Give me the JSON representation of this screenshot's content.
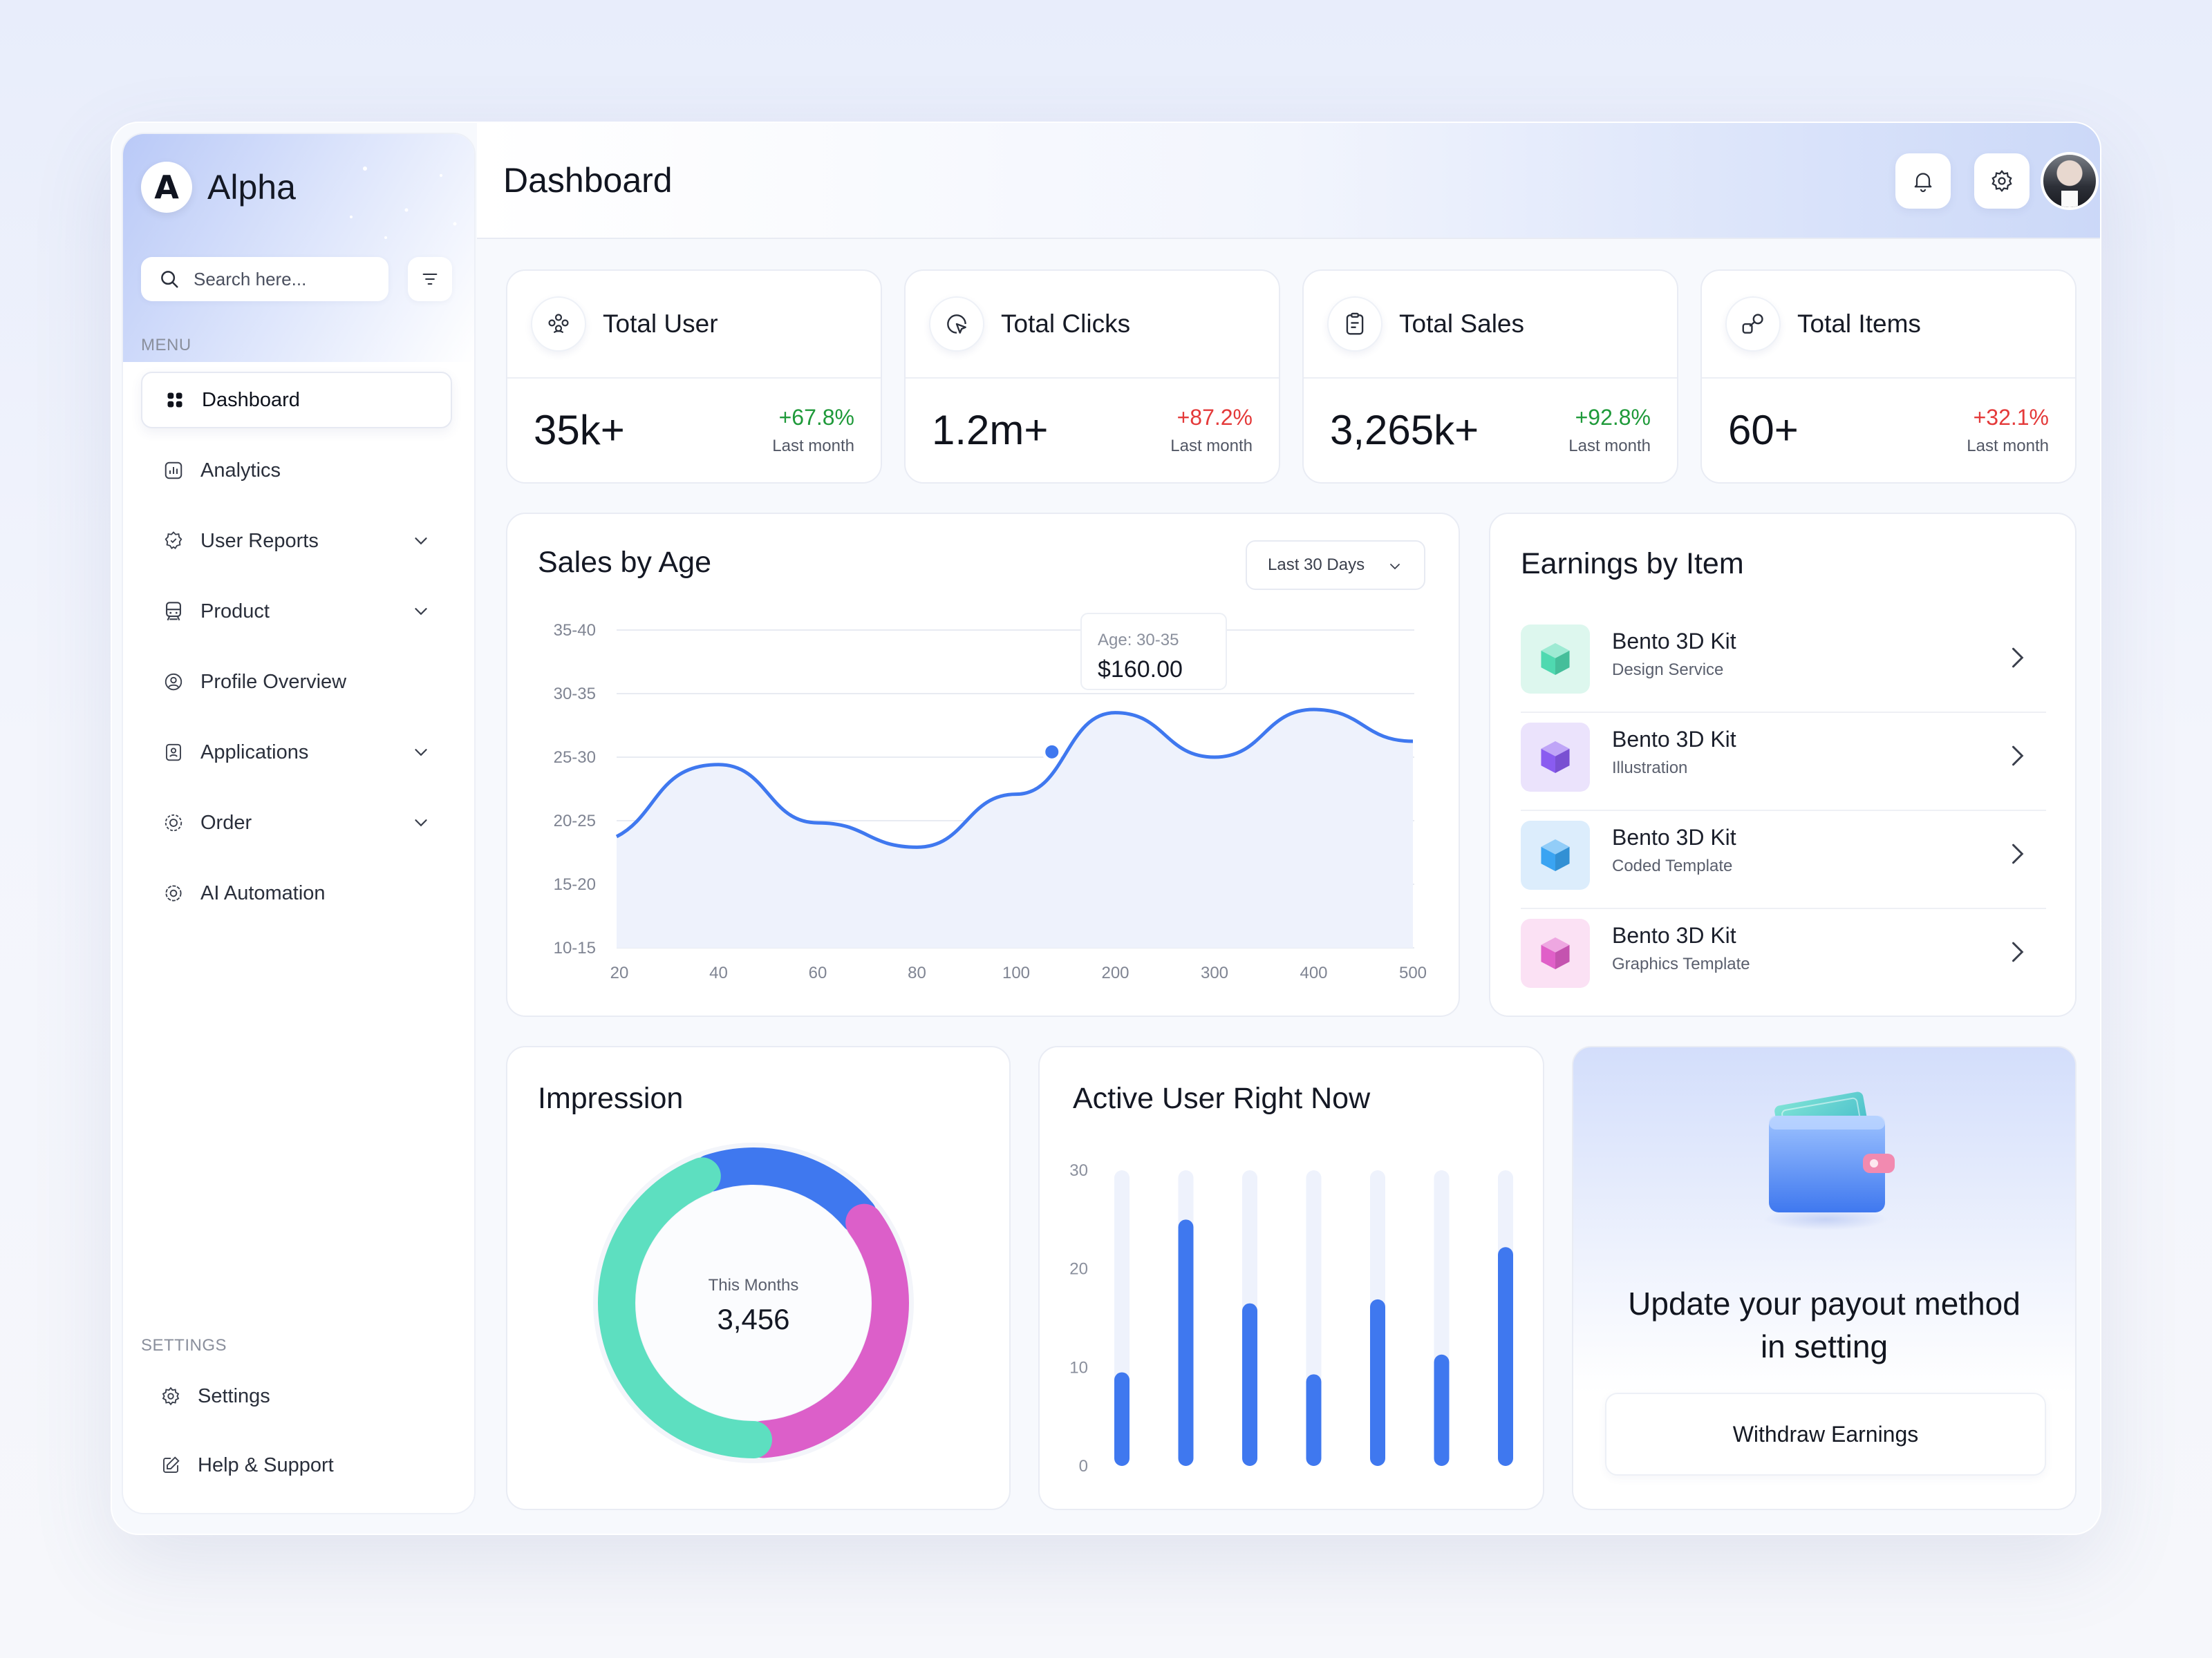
{
  "app": {
    "name": "Alpha",
    "logo_letter": "A"
  },
  "sidebar": {
    "search_placeholder": "Search here...",
    "menu_label": "MENU",
    "items": [
      {
        "label": "Dashboard",
        "icon": "grid-icon",
        "active": true
      },
      {
        "label": "Analytics",
        "icon": "chart-icon"
      },
      {
        "label": "User Reports",
        "icon": "badge-icon",
        "expandable": true
      },
      {
        "label": "Product",
        "icon": "train-icon",
        "expandable": true
      },
      {
        "label": "Profile Overview",
        "icon": "user-circle-icon"
      },
      {
        "label": "Applications",
        "icon": "id-card-icon",
        "expandable": true
      },
      {
        "label": "Order",
        "icon": "target-icon",
        "expandable": true
      },
      {
        "label": "AI Automation",
        "icon": "gear-spark-icon"
      }
    ],
    "settings_label": "SETTINGS",
    "settings_items": [
      {
        "label": "Settings",
        "icon": "gear-icon"
      },
      {
        "label": "Help & Support",
        "icon": "edit-icon"
      }
    ]
  },
  "header": {
    "title": "Dashboard"
  },
  "stats": [
    {
      "title": "Total User",
      "value": "35k+",
      "change": "+67.8%",
      "trend": "green",
      "sub": "Last month",
      "icon": "users-icon"
    },
    {
      "title": "Total Clicks",
      "value": "1.2m+",
      "change": "+87.2%",
      "trend": "red",
      "sub": "Last month",
      "icon": "cursor-icon"
    },
    {
      "title": "Total Sales",
      "value": "3,265k+",
      "change": "+92.8%",
      "trend": "green",
      "sub": "Last month",
      "icon": "clipboard-icon"
    },
    {
      "title": "Total Items",
      "value": "60+",
      "change": "+32.1%",
      "trend": "red",
      "sub": "Last month",
      "icon": "shapes-icon"
    }
  ],
  "sales_by_age": {
    "title": "Sales by Age",
    "range_select": "Last 30 Days",
    "tooltip": {
      "label": "Age: 30-35",
      "value": "$160.00"
    }
  },
  "earnings": {
    "title": "Earnings by Item",
    "items": [
      {
        "name": "Bento 3D Kit",
        "sub": "Design Service",
        "color": "#4fd9b0",
        "bg": "#ddf7ee"
      },
      {
        "name": "Bento 3D Kit",
        "sub": "Illustration",
        "color": "#8a5cf0",
        "bg": "#ebe3fc"
      },
      {
        "name": "Bento 3D Kit",
        "sub": "Coded Template",
        "color": "#3aa4f2",
        "bg": "#dcedfc"
      },
      {
        "name": "Bento 3D Kit",
        "sub": "Graphics Template",
        "color": "#e05fc8",
        "bg": "#fbe1f4"
      }
    ]
  },
  "impression": {
    "title": "Impression",
    "center_label": "This Months",
    "center_value": "3,456"
  },
  "active_users": {
    "title": "Active User Right Now"
  },
  "promo": {
    "text_line1": "Update your payout method",
    "text_line2": "in setting",
    "button": "Withdraw Earnings"
  },
  "chart_data": [
    {
      "type": "area",
      "title": "Sales by Age",
      "x": [
        "20",
        "40",
        "60",
        "80",
        "100",
        "200",
        "300",
        "400",
        "500"
      ],
      "y_ticks": [
        "35-40",
        "30-35",
        "25-30",
        "20-25",
        "15-20",
        "10-15"
      ],
      "series": [
        {
          "values": [
            23.8,
            27.3,
            21.8,
            19.5,
            24.5,
            32.2,
            28.0,
            32.5,
            29.5
          ]
        }
      ],
      "highlight": {
        "x": "100-200",
        "label": "Age: 30-35",
        "value": "$160.00"
      },
      "grid": true,
      "colors": {
        "line": "#3f78ef",
        "fill": "#eef2fc"
      }
    },
    {
      "type": "pie",
      "title": "Impression",
      "donut": true,
      "center_label": "This Months",
      "center_value": "3,456",
      "slices": [
        {
          "value": 20,
          "color": "#3f78ef"
        },
        {
          "value": 35,
          "color": "#dc5fc9"
        },
        {
          "value": 45,
          "color": "#5ddfc0"
        }
      ]
    },
    {
      "type": "bar",
      "title": "Active User Right Now",
      "ylim": [
        0,
        30
      ],
      "y_ticks": [
        "30",
        "20",
        "10",
        "0"
      ],
      "values": [
        9.5,
        25,
        16.5,
        9.3,
        16.9,
        11.3,
        22.2
      ],
      "colors": {
        "bar": "#3f78ef",
        "track": "#eef2fc"
      }
    }
  ]
}
